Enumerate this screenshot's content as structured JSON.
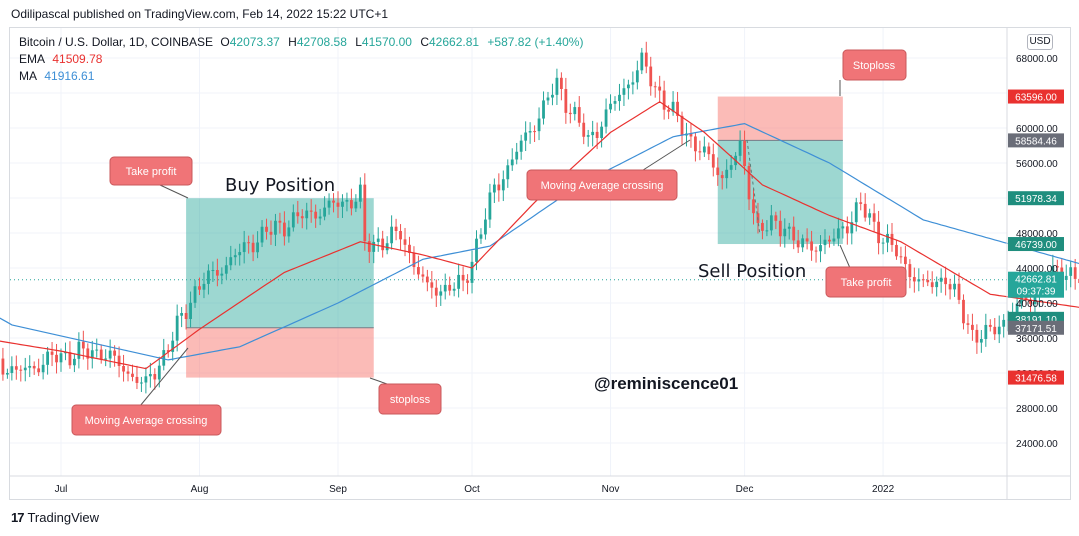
{
  "header": {
    "published_line": "Odilipascal published on TradingView.com, Feb 14, 2022 15:22 UTC+1",
    "symbol": "Bitcoin / U.S. Dollar, 1D, COINBASE",
    "ohlc": {
      "o_key": "O",
      "o": "42073.37",
      "h_key": "H",
      "h": "42708.58",
      "l_key": "L",
      "l": "41570.00",
      "c_key": "C",
      "c": "42662.81",
      "change": "+587.82 (+1.40%)"
    },
    "ema_label": "EMA",
    "ema_value": "41509.78",
    "ma_label": "MA",
    "ma_value": "41916.61"
  },
  "currency_badge": "USD",
  "footer": {
    "brand_mark": "17",
    "brand": "TradingView"
  },
  "colors": {
    "up": "#26a69a",
    "down": "#ef5350",
    "ema": "#e9312f",
    "ma": "#3e8fd6",
    "profit_fill": "#26a69a",
    "loss_fill": "#f7a09b",
    "callout": "#f07477"
  },
  "chart_data": {
    "type": "candlestick",
    "title": "",
    "y_axis": {
      "min": 20000,
      "max": 70000,
      "scale": "linear",
      "position": "right",
      "ticks": [
        "68000.00",
        "64000.00",
        "60000.00",
        "56000.00",
        "52000.00",
        "48000.00",
        "44000.00",
        "40000.00",
        "36000.00",
        "32000.00",
        "28000.00",
        "24000.00"
      ]
    },
    "x_axis": {
      "start": "2021-06-01",
      "end": "2022-02-14",
      "ticks": [
        {
          "label": "Jul",
          "date": "2021-07-01"
        },
        {
          "label": "Aug",
          "date": "2021-08-01"
        },
        {
          "label": "Sep",
          "date": "2021-09-01"
        },
        {
          "label": "Oct",
          "date": "2021-10-01"
        },
        {
          "label": "Nov",
          "date": "2021-11-01"
        },
        {
          "label": "Dec",
          "date": "2021-12-01"
        },
        {
          "label": "2022",
          "date": "2022-01-01"
        }
      ]
    },
    "price_anchors": [
      {
        "date": "2021-06-01",
        "price": 36500
      },
      {
        "date": "2021-06-10",
        "price": 35500
      },
      {
        "date": "2021-06-21",
        "price": 32000
      },
      {
        "date": "2021-07-01",
        "price": 34000
      },
      {
        "date": "2021-07-10",
        "price": 34500
      },
      {
        "date": "2021-07-20",
        "price": 30500
      },
      {
        "date": "2021-07-25",
        "price": 35000
      },
      {
        "date": "2021-07-31",
        "price": 41500
      },
      {
        "date": "2021-08-14",
        "price": 47500
      },
      {
        "date": "2021-08-22",
        "price": 49500
      },
      {
        "date": "2021-09-06",
        "price": 52200
      },
      {
        "date": "2021-09-07",
        "price": 46500
      },
      {
        "date": "2021-09-15",
        "price": 47800
      },
      {
        "date": "2021-09-21",
        "price": 41500
      },
      {
        "date": "2021-09-29",
        "price": 42000
      },
      {
        "date": "2021-10-06",
        "price": 53000
      },
      {
        "date": "2021-10-16",
        "price": 61500
      },
      {
        "date": "2021-10-20",
        "price": 65000
      },
      {
        "date": "2021-10-27",
        "price": 58500
      },
      {
        "date": "2021-11-08",
        "price": 67500
      },
      {
        "date": "2021-11-10",
        "price": 65500
      },
      {
        "date": "2021-11-17",
        "price": 60000
      },
      {
        "date": "2021-11-26",
        "price": 54500
      },
      {
        "date": "2021-11-30",
        "price": 57500
      },
      {
        "date": "2021-12-04",
        "price": 48500
      },
      {
        "date": "2021-12-10",
        "price": 49000
      },
      {
        "date": "2021-12-13",
        "price": 46500
      },
      {
        "date": "2021-12-20",
        "price": 46800
      },
      {
        "date": "2021-12-27",
        "price": 51000
      },
      {
        "date": "2022-01-01",
        "price": 47500
      },
      {
        "date": "2022-01-10",
        "price": 41800
      },
      {
        "date": "2022-01-15",
        "price": 43000
      },
      {
        "date": "2022-01-21",
        "price": 36500
      },
      {
        "date": "2022-01-24",
        "price": 36200
      },
      {
        "date": "2022-02-10",
        "price": 44000
      },
      {
        "date": "2022-02-14",
        "price": 42600
      }
    ],
    "ema_anchors": [
      {
        "date": "2021-06-01",
        "price": 37000
      },
      {
        "date": "2021-07-01",
        "price": 34500
      },
      {
        "date": "2021-07-20",
        "price": 32500
      },
      {
        "date": "2021-08-01",
        "price": 37000
      },
      {
        "date": "2021-08-20",
        "price": 43500
      },
      {
        "date": "2021-09-06",
        "price": 47000
      },
      {
        "date": "2021-09-20",
        "price": 45500
      },
      {
        "date": "2021-10-01",
        "price": 44000
      },
      {
        "date": "2021-10-15",
        "price": 51500
      },
      {
        "date": "2021-11-01",
        "price": 59500
      },
      {
        "date": "2021-11-12",
        "price": 63000
      },
      {
        "date": "2021-11-22",
        "price": 59500
      },
      {
        "date": "2021-12-05",
        "price": 53500
      },
      {
        "date": "2021-12-20",
        "price": 50000
      },
      {
        "date": "2022-01-05",
        "price": 47000
      },
      {
        "date": "2022-01-25",
        "price": 41000
      },
      {
        "date": "2022-02-14",
        "price": 39500
      }
    ],
    "ma_anchors": [
      {
        "date": "2021-06-01",
        "price": 43000
      },
      {
        "date": "2021-06-20",
        "price": 37500
      },
      {
        "date": "2021-07-25",
        "price": 33500
      },
      {
        "date": "2021-08-10",
        "price": 35000
      },
      {
        "date": "2021-09-01",
        "price": 40000
      },
      {
        "date": "2021-09-20",
        "price": 45000
      },
      {
        "date": "2021-10-05",
        "price": 46500
      },
      {
        "date": "2021-10-25",
        "price": 53500
      },
      {
        "date": "2021-11-15",
        "price": 59000
      },
      {
        "date": "2021-12-01",
        "price": 60500
      },
      {
        "date": "2021-12-20",
        "price": 56000
      },
      {
        "date": "2022-01-10",
        "price": 49500
      },
      {
        "date": "2022-02-14",
        "price": 44500
      }
    ],
    "price_labels": [
      {
        "value": "63596.00",
        "price": 63596,
        "color": "#e9312f"
      },
      {
        "value": "58584.46",
        "price": 58584,
        "color": "#6a6d78"
      },
      {
        "value": "51978.34",
        "price": 51978,
        "color": "#1f8e7e"
      },
      {
        "value": "46739.00",
        "price": 46739,
        "color": "#1f8e7e"
      },
      {
        "value": "42662.81",
        "sub": "09:37:39",
        "price": 42663,
        "color": "#26a69a"
      },
      {
        "value": "38191.10",
        "price": 38191,
        "color": "#1f8e7e"
      },
      {
        "value": "37171.51",
        "price": 37171,
        "color": "#6a6d78"
      },
      {
        "value": "31476.58",
        "price": 31477,
        "color": "#e9312f"
      }
    ],
    "current_price_line": 42662.81,
    "positions": [
      {
        "name": "buy",
        "title": "Buy Position",
        "start": "2021-07-29",
        "end": "2021-09-09",
        "entry": 37171.51,
        "target": 51978.34,
        "stop": 31476.58
      },
      {
        "name": "sell",
        "title": "Sell Position",
        "start": "2021-11-25",
        "end": "2021-12-23",
        "entry": 58584.46,
        "target": 46739.0,
        "stop": 63596.0
      }
    ],
    "annotations": [
      {
        "text": "Take profit",
        "kind": "callout"
      },
      {
        "text": "Moving Average crossing",
        "kind": "callout"
      },
      {
        "text": "stoploss",
        "kind": "callout"
      },
      {
        "text": "Moving Average crossing",
        "kind": "callout"
      },
      {
        "text": "Stoploss",
        "kind": "callout"
      },
      {
        "text": "Take profit",
        "kind": "callout"
      },
      {
        "text": "@reminiscence01",
        "kind": "watermark"
      }
    ]
  }
}
